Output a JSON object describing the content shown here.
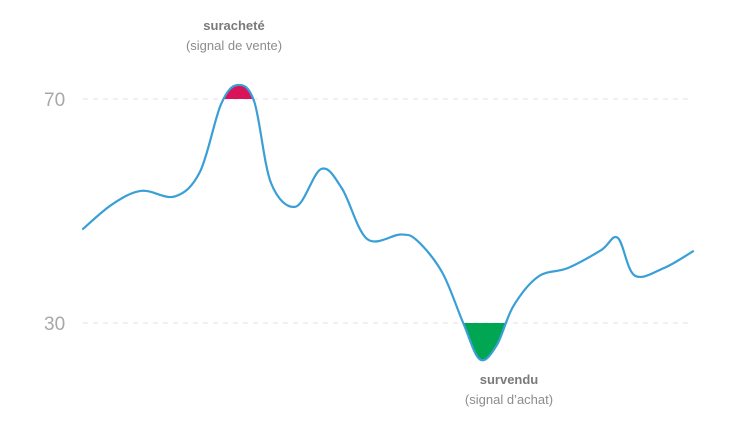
{
  "chart_data": {
    "type": "line",
    "title": "",
    "xlabel": "",
    "ylabel": "",
    "grid": true,
    "yticks": [
      {
        "value": 70,
        "label": "70"
      },
      {
        "value": 30,
        "label": "30"
      }
    ],
    "thresholds": {
      "overbought": 70,
      "oversold": 30
    },
    "series": [
      {
        "color": "#3a9fd6",
        "points": [
          {
            "x": 0,
            "y": 46.8
          },
          {
            "x": 7,
            "y": 51.2
          },
          {
            "x": 14,
            "y": 53.6
          },
          {
            "x": 22,
            "y": 52.6
          },
          {
            "x": 28,
            "y": 57.0
          },
          {
            "x": 33,
            "y": 69.0
          },
          {
            "x": 37,
            "y": 72.5
          },
          {
            "x": 41,
            "y": 69.5
          },
          {
            "x": 45,
            "y": 55.0
          },
          {
            "x": 51,
            "y": 50.8
          },
          {
            "x": 57,
            "y": 57.5
          },
          {
            "x": 62,
            "y": 54.0
          },
          {
            "x": 68,
            "y": 45.0
          },
          {
            "x": 76,
            "y": 45.8
          },
          {
            "x": 80,
            "y": 44.7
          },
          {
            "x": 86,
            "y": 39.0
          },
          {
            "x": 91,
            "y": 30.0
          },
          {
            "x": 95,
            "y": 23.5
          },
          {
            "x": 99,
            "y": 26.0
          },
          {
            "x": 103,
            "y": 33.0
          },
          {
            "x": 109,
            "y": 38.3
          },
          {
            "x": 116,
            "y": 39.8
          },
          {
            "x": 124,
            "y": 43.0
          },
          {
            "x": 128,
            "y": 45.2
          },
          {
            "x": 132,
            "y": 38.5
          },
          {
            "x": 139,
            "y": 39.8
          },
          {
            "x": 146,
            "y": 42.8
          }
        ]
      }
    ],
    "fills": [
      {
        "name": "overbought",
        "threshold": 70,
        "side": "above",
        "color": "#d81359"
      },
      {
        "name": "oversold",
        "threshold": 30,
        "side": "below",
        "color": "#00a651"
      }
    ],
    "annotations": {
      "overbought": {
        "title": "suracheté",
        "subtitle": "(signal de vente)"
      },
      "oversold": {
        "title": "survendu",
        "subtitle": "(signal d’achat)"
      }
    }
  }
}
